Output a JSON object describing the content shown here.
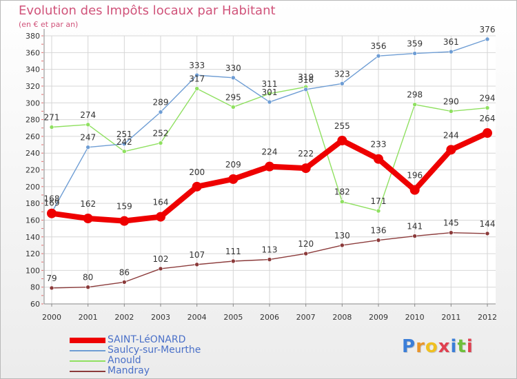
{
  "title": "Evolution des Impôts locaux par Habitant",
  "subtitle": "(en € et par an)",
  "logo": {
    "text": "Proxiti",
    "colors": [
      "#3b7ed8",
      "#e8952b",
      "#f0c020",
      "#e04050",
      "#3b7ed8",
      "#6fbf3a",
      "#e04050"
    ]
  },
  "chart_data": {
    "type": "line",
    "x": [
      "2000",
      "2001",
      "2002",
      "2003",
      "2004",
      "2005",
      "2006",
      "2007",
      "2008",
      "2009",
      "2010",
      "2011",
      "2012"
    ],
    "ylim": [
      60,
      380
    ],
    "yticks": [
      60,
      80,
      100,
      120,
      140,
      160,
      180,
      200,
      220,
      240,
      260,
      280,
      300,
      320,
      340,
      360,
      380
    ],
    "grid": true,
    "legend_position": "bottom-left",
    "series": [
      {
        "name": "SAINT-LéONARD",
        "color": "#ee0000",
        "values": [
          168,
          162,
          159,
          164,
          200,
          209,
          224,
          222,
          255,
          233,
          196,
          244,
          264
        ]
      },
      {
        "name": "Saulcy-sur-Meurthe",
        "color": "#6e9dd4",
        "values": [
          169,
          247,
          251,
          289,
          333,
          330,
          301,
          316,
          323,
          356,
          359,
          361,
          376
        ]
      },
      {
        "name": "Anould",
        "color": "#8fe060",
        "values": [
          271,
          274,
          242,
          252,
          317,
          295,
          311,
          319,
          182,
          171,
          298,
          290,
          294
        ]
      },
      {
        "name": "Mandray",
        "color": "#8b3a3a",
        "values": [
          79,
          80,
          86,
          102,
          107,
          111,
          113,
          120,
          130,
          136,
          141,
          145,
          144
        ]
      }
    ]
  }
}
